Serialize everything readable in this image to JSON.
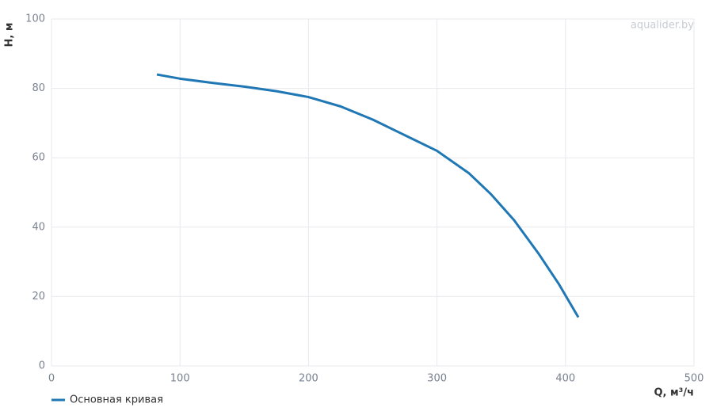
{
  "chart_data": {
    "type": "line",
    "watermark": "aqualider.by",
    "x_label": "Q, м³/ч",
    "y_label": "H, м",
    "x": [
      82,
      100,
      125,
      150,
      175,
      200,
      225,
      250,
      275,
      300,
      325,
      342,
      360,
      379,
      395,
      410
    ],
    "series": [
      {
        "name": "Основная кривая",
        "color": "#1f77b4",
        "values": [
          84,
          82.8,
          81.6,
          80.5,
          79.2,
          77.5,
          74.8,
          71,
          66.5,
          62,
          55.5,
          49.5,
          42,
          32.4,
          23.5,
          14
        ]
      }
    ],
    "xlim": [
      0,
      500
    ],
    "xticks": [
      0,
      100,
      200,
      300,
      400,
      500
    ],
    "ylim": [
      0,
      100
    ],
    "yticks": [
      0,
      20,
      40,
      60,
      80,
      100
    ],
    "grid": true
  }
}
